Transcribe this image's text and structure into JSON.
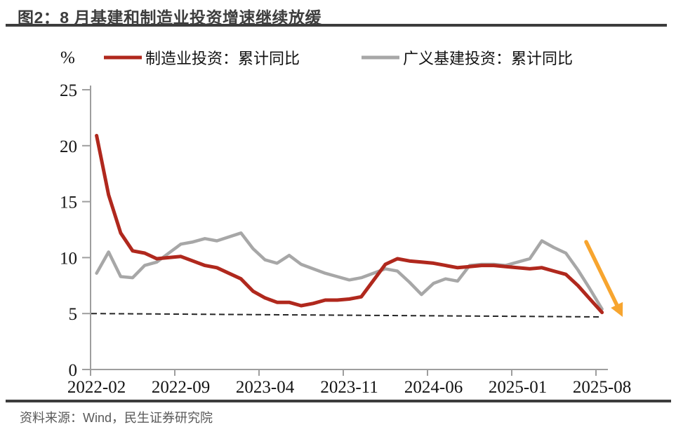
{
  "header": {
    "title": "图2：8 月基建和制造业投资增速继续放缓"
  },
  "footer": {
    "source": "资料来源：Wind，民生证券研究院"
  },
  "chart_data": {
    "type": "line",
    "title": "图2：8 月基建和制造业投资增速继续放缓",
    "unit_label": "%",
    "legend_position": "top",
    "grid": "off",
    "ylim": [
      0,
      25
    ],
    "y_ticks": [
      0,
      5,
      10,
      15,
      20,
      25
    ],
    "x_tick_labels": [
      "2022-02",
      "2022-09",
      "2023-04",
      "2023-11",
      "2024-06",
      "2025-01",
      "2025-08"
    ],
    "categories": [
      "2022-02",
      "2022-03",
      "2022-04",
      "2022-05",
      "2022-06",
      "2022-07",
      "2022-08",
      "2022-09",
      "2022-10",
      "2022-11",
      "2022-12",
      "2023-01",
      "2023-02",
      "2023-03",
      "2023-04",
      "2023-05",
      "2023-06",
      "2023-07",
      "2023-08",
      "2023-09",
      "2023-10",
      "2023-11",
      "2023-12",
      "2024-01",
      "2024-02",
      "2024-03",
      "2024-04",
      "2024-05",
      "2024-06",
      "2024-07",
      "2024-08",
      "2024-09",
      "2024-10",
      "2024-11",
      "2024-12",
      "2025-01",
      "2025-02",
      "2025-03",
      "2025-04",
      "2025-05",
      "2025-06",
      "2025-07",
      "2025-08"
    ],
    "series": [
      {
        "name": "制造业投资：累计同比",
        "color": "#B0281D",
        "values": [
          20.9,
          15.6,
          12.2,
          10.6,
          10.4,
          9.9,
          10.0,
          10.1,
          9.7,
          9.3,
          9.1,
          null,
          8.1,
          7.0,
          6.4,
          6.0,
          6.0,
          5.7,
          5.9,
          6.2,
          6.2,
          6.3,
          6.5,
          null,
          9.4,
          9.9,
          9.7,
          9.6,
          9.5,
          9.3,
          9.1,
          9.2,
          9.3,
          9.3,
          9.2,
          null,
          9.0,
          9.1,
          8.8,
          8.5,
          7.5,
          6.3,
          5.1
        ]
      },
      {
        "name": "广义基建投资：累计同比",
        "color": "#A7A7A7",
        "values": [
          8.6,
          10.5,
          8.3,
          8.2,
          9.3,
          9.6,
          10.4,
          11.2,
          11.4,
          11.7,
          11.5,
          null,
          12.2,
          10.8,
          9.8,
          9.5,
          10.2,
          9.4,
          9.0,
          8.6,
          8.3,
          8.0,
          8.2,
          null,
          9.0,
          8.8,
          7.8,
          6.7,
          7.7,
          8.1,
          7.9,
          9.3,
          9.4,
          9.4,
          9.3,
          null,
          9.9,
          11.5,
          10.9,
          10.4,
          8.9,
          7.2,
          5.4
        ]
      }
    ],
    "reference_line": {
      "style": "dashed",
      "start_value": 5.0,
      "end_value": 4.7
    },
    "annotation": {
      "type": "down-right-arrow",
      "color": "#F7A52F"
    }
  }
}
